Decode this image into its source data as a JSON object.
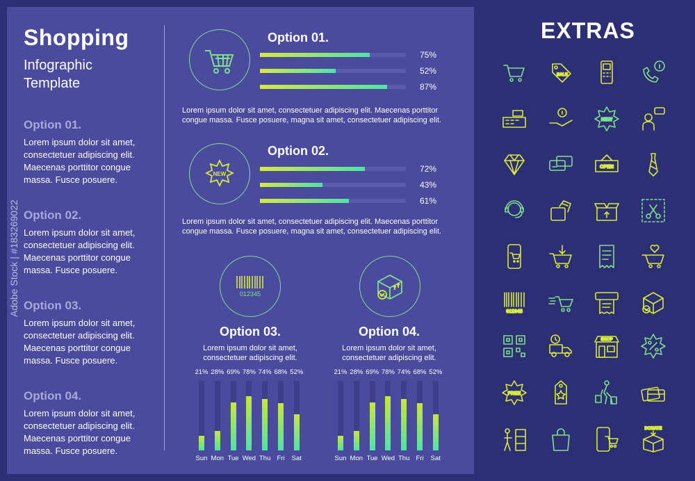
{
  "page": {
    "title": "Shopping",
    "subtitle": "Infographic Template"
  },
  "left_options": [
    {
      "title": "Option 01.",
      "text": "Lorem ipsum dolor sit amet, consectetuer adipiscing elit. Maecenas porttitor congue massa. Fusce posuere."
    },
    {
      "title": "Option 02.",
      "text": "Lorem ipsum dolor sit amet, consectetuer adipiscing elit. Maecenas porttitor congue massa. Fusce posuere."
    },
    {
      "title": "Option 03.",
      "text": "Lorem ipsum dolor sit amet, consectetuer adipiscing elit. Maecenas porttitor congue massa. Fusce posuere."
    },
    {
      "title": "Option 04.",
      "text": "Lorem ipsum dolor sit amet, consectetuer adipiscing elit. Maecenas porttitor congue massa. Fusce posuere."
    }
  ],
  "option01": {
    "title": "Option 01.",
    "icon": "shopping-cart-icon",
    "bars": [
      75,
      52,
      87
    ],
    "labels": [
      "75%",
      "52%",
      "87%"
    ],
    "text": "Lorem ipsum dolor sit amet, consectetuer adipiscing elit. Maecenas porttitor congue massa. Fusce posuere, magna sit amet, consectetuer adipiscing elit."
  },
  "option02": {
    "title": "Option 02.",
    "icon": "new-badge-icon",
    "badge": "NEW",
    "bars": [
      72,
      43,
      61
    ],
    "labels": [
      "72%",
      "43%",
      "61%"
    ],
    "text": "Lorem ipsum dolor sit amet, consectetuer adipiscing elit. Maecenas porttitor congue massa. Fusce posuere, magna sit amet, consectetuer adipiscing elit."
  },
  "option03": {
    "title": "Option 03.",
    "icon": "barcode-icon",
    "barcode_digits": "012345",
    "text": "Lorem ipsum dolor sit amet, consectetuer adipiscing elit."
  },
  "option04": {
    "title": "Option 04.",
    "icon": "box-delivered-icon",
    "text": "Lorem ipsum dolor sit amet, consectetuer adipiscing elit."
  },
  "chart_data": [
    {
      "type": "bar",
      "categories": [
        "Sun",
        "Mon",
        "Tue",
        "Wed",
        "Thu",
        "Fri",
        "Sat"
      ],
      "values": [
        21,
        28,
        69,
        78,
        74,
        68,
        52
      ],
      "value_labels": [
        "21%",
        "28%",
        "69%",
        "78%",
        "74%",
        "68%",
        "52%"
      ],
      "ylim": [
        0,
        100
      ]
    },
    {
      "type": "bar",
      "categories": [
        "Sun",
        "Mon",
        "Tue",
        "Wed",
        "Thu",
        "Fri",
        "Sat"
      ],
      "values": [
        21,
        28,
        69,
        78,
        74,
        68,
        52
      ],
      "value_labels": [
        "21%",
        "28%",
        "69%",
        "78%",
        "74%",
        "68%",
        "52%"
      ],
      "ylim": [
        0,
        100
      ]
    }
  ],
  "extras": {
    "title": "EXTRAS",
    "icons": [
      "shopping-cart-icon",
      "sale-tag-icon",
      "card-terminal-icon",
      "phone-info-icon",
      "cash-register-icon",
      "coin-hand-icon",
      "new-badge-icon",
      "support-agent-chat-icon",
      "diamond-icon",
      "credit-cards-icon",
      "open-sign-icon",
      "necktie-icon",
      "headset-support-icon",
      "money-wallet-icon",
      "open-box-icon",
      "coupon-scissors-icon",
      "mobile-cart-icon",
      "cart-download-icon",
      "receipt-icon",
      "cart-heart-icon",
      "barcode-icon",
      "fast-cart-icon",
      "receipt-printer-icon",
      "box-delivered-icon",
      "qr-code-icon",
      "delivery-truck-clock-icon",
      "shop-front-icon",
      "discount-badge-icon",
      "free-badge-icon",
      "star-tag-icon",
      "shopper-bags-icon",
      "cards-stack-icon",
      "customer-shelf-icon",
      "shopping-bag-icon",
      "mobile-shop-cart-icon",
      "donate-box-icon"
    ],
    "labels": {
      "sale": "SALE",
      "new": "NEW",
      "open": "OPEN",
      "barcode": "012345",
      "free": "FREE",
      "shop": "SHOP",
      "donate": "DONATE"
    }
  },
  "watermark": "Adobe Stock | #183269022",
  "colors": {
    "background": "#2c2f73",
    "panel": "#4a4a9e",
    "accent_green": "#7ee08b",
    "accent_yellow": "#d8ea3b"
  }
}
